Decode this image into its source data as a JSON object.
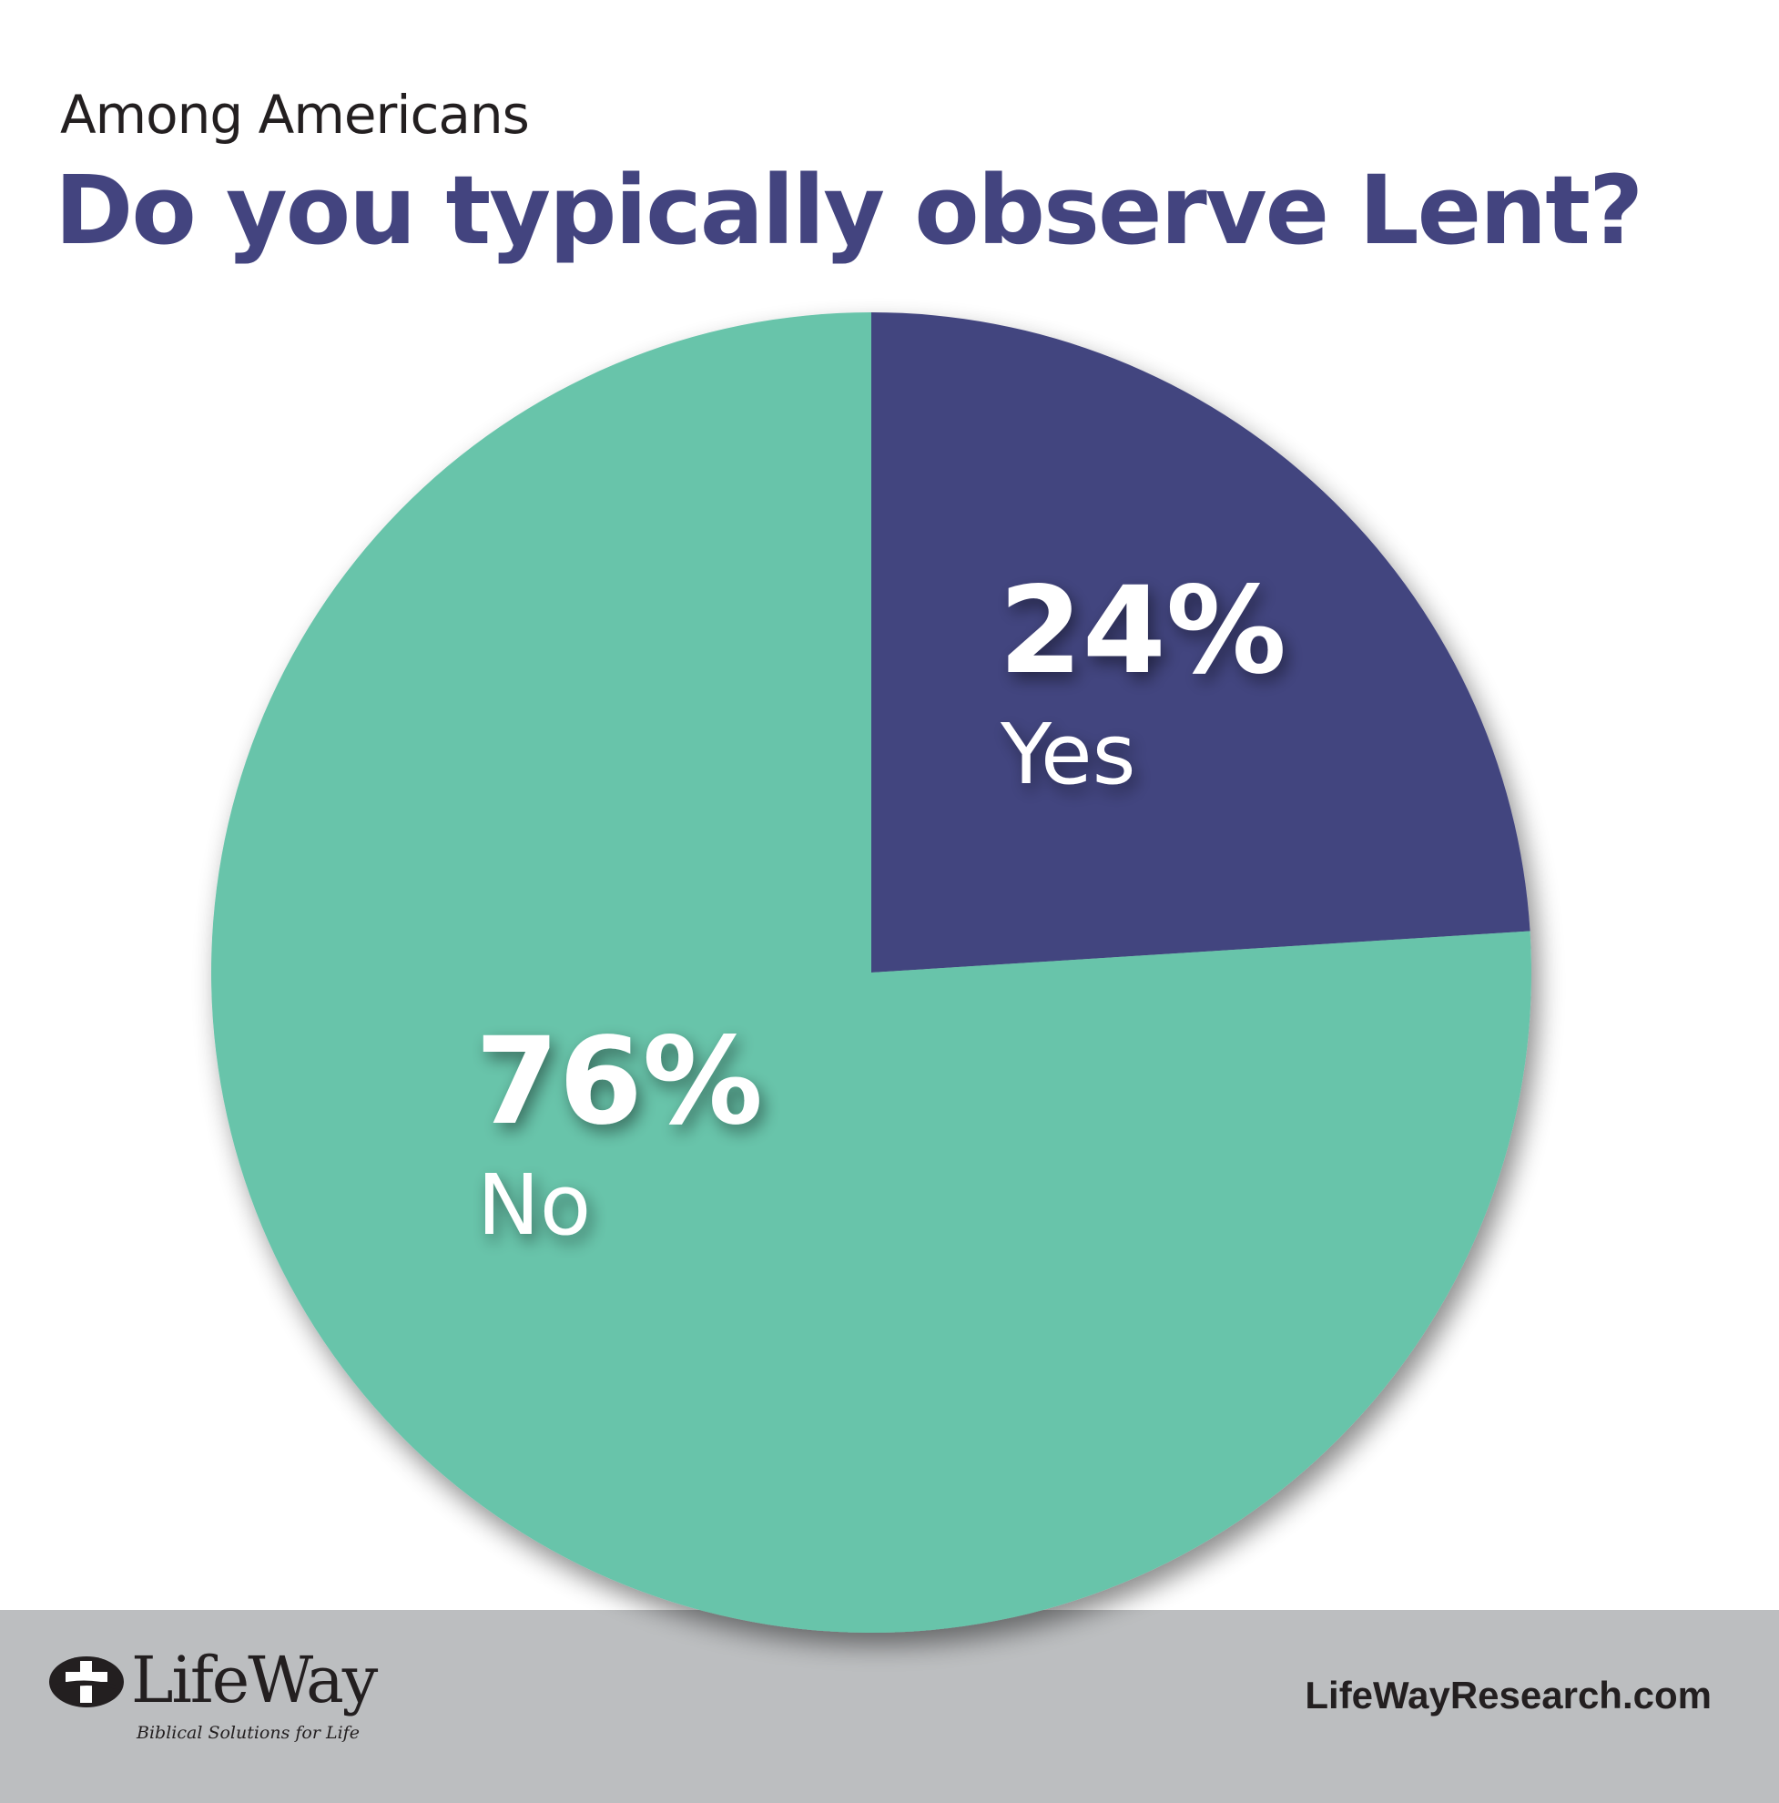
{
  "header": {
    "subtitle": "Among Americans",
    "title": "Do you typically observe Lent?"
  },
  "chart_data": {
    "type": "pie",
    "title": "Do you typically observe Lent?",
    "subtitle": "Among Americans",
    "slices": [
      {
        "label": "Yes",
        "value": 24,
        "value_label": "24%",
        "color": "#43447f"
      },
      {
        "label": "No",
        "value": 76,
        "value_label": "76%",
        "color": "#67c4aa"
      }
    ]
  },
  "footer": {
    "logo_text": "LifeWay",
    "logo_tagline": "Biblical Solutions for Life",
    "website": "LifeWayResearch.com"
  }
}
